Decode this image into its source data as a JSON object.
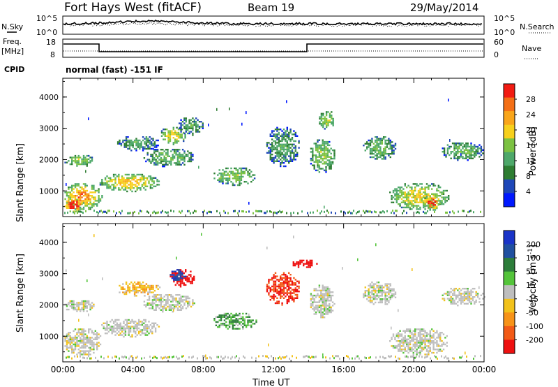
{
  "header": {
    "station": "Fort Hays West (fitACF)",
    "beam": "Beam 19",
    "date": "29/May/2014"
  },
  "status_panels": {
    "nsky_label": "N.Sky",
    "nsearch_label": "N.Search",
    "freq_label_1": "Freq.",
    "freq_label_2": "[MHz]",
    "nave_label": "Nave",
    "cpid_label": "CPID",
    "cpid_text": "normal (fast) -151 IF",
    "noise_left_ticks": [
      "10^5",
      "10^0"
    ],
    "noise_right_ticks": [
      "10^5",
      "10^0"
    ],
    "freq_left_ticks": [
      "18",
      "8"
    ],
    "freq_right_ticks": [
      "60",
      "0"
    ]
  },
  "colors": {
    "power": [
      "#0018ff",
      "#1e47b8",
      "#2e7d32",
      "#4ea86a",
      "#7cc242",
      "#f7d01c",
      "#f9a51a",
      "#f46f16",
      "#f21b12"
    ],
    "velocity": [
      "#1a34c8",
      "#2050a0",
      "#2d7d3a",
      "#54c43a",
      "#bebebe",
      "#f2c21b",
      "#f79318",
      "#f25a16",
      "#ee1010"
    ]
  },
  "chart_data": [
    {
      "type": "heatmap",
      "title": "Power",
      "ylabel": "Slant Range [km]",
      "xlabel": "",
      "x_unit": "UT hours",
      "xlim": [
        0,
        24
      ],
      "ylim": [
        180,
        4600
      ],
      "y_ticks": [
        1000,
        2000,
        3000,
        4000
      ],
      "x_ticks": [
        0,
        4,
        8,
        12,
        16,
        20,
        24
      ],
      "colorbar_label": "Power [dB]",
      "colorbar_range": [
        0,
        30
      ],
      "colorbar_ticks": [
        "4",
        "8",
        "12",
        "16",
        "20",
        "24",
        "28"
      ],
      "echo_regions": [
        {
          "t0": 0.0,
          "t1": 2.2,
          "r0": 400,
          "r1": 1300,
          "level": 22
        },
        {
          "t0": 0.0,
          "t1": 1.2,
          "r0": 350,
          "r1": 800,
          "level": 28
        },
        {
          "t0": 0.0,
          "t1": 1.8,
          "r0": 1800,
          "r1": 2200,
          "level": 14
        },
        {
          "t0": 2.0,
          "t1": 5.5,
          "r0": 1000,
          "r1": 1600,
          "level": 20
        },
        {
          "t0": 3.0,
          "t1": 5.5,
          "r0": 2300,
          "r1": 2800,
          "level": 10
        },
        {
          "t0": 4.5,
          "t1": 7.5,
          "r0": 1800,
          "r1": 2400,
          "level": 12
        },
        {
          "t0": 5.5,
          "t1": 7.0,
          "r0": 2500,
          "r1": 3100,
          "level": 18
        },
        {
          "t0": 6.5,
          "t1": 8.0,
          "r0": 2800,
          "r1": 3400,
          "level": 10
        },
        {
          "t0": 8.5,
          "t1": 11.0,
          "r0": 1200,
          "r1": 1800,
          "level": 14
        },
        {
          "t0": 11.5,
          "t1": 13.5,
          "r0": 1800,
          "r1": 3100,
          "level": 10
        },
        {
          "t0": 14.0,
          "t1": 15.5,
          "r0": 1600,
          "r1": 2700,
          "level": 14
        },
        {
          "t0": 14.5,
          "t1": 15.5,
          "r0": 3000,
          "r1": 3600,
          "level": 16
        },
        {
          "t0": 17.0,
          "t1": 19.0,
          "r0": 2000,
          "r1": 2800,
          "level": 12
        },
        {
          "t0": 18.5,
          "t1": 22.0,
          "r0": 400,
          "r1": 1300,
          "level": 18
        },
        {
          "t0": 20.5,
          "t1": 21.5,
          "r0": 400,
          "r1": 900,
          "level": 26
        },
        {
          "t0": 21.5,
          "t1": 24.0,
          "r0": 2000,
          "r1": 2600,
          "level": 12
        }
      ]
    },
    {
      "type": "heatmap",
      "title": "Velocity",
      "ylabel": "Slant Range [km]",
      "xlabel": "Time UT",
      "x_unit": "UT hours",
      "xlim": [
        0,
        24
      ],
      "ylim": [
        180,
        4600
      ],
      "y_ticks": [
        1000,
        2000,
        3000,
        4000
      ],
      "x_tick_labels": [
        "00:00",
        "04:00",
        "08:00",
        "12:00",
        "16:00",
        "20:00",
        "00:00"
      ],
      "colorbar_label": "Velocity [m s^-1]",
      "colorbar_ticks": [
        "200",
        "100",
        "50",
        "15",
        "-15",
        "-50",
        "-100",
        "-200"
      ],
      "echo_regions": [
        {
          "t0": 0.0,
          "t1": 2.2,
          "r0": 400,
          "r1": 1300,
          "level": 0
        },
        {
          "t0": 0.0,
          "t1": 1.8,
          "r0": 1800,
          "r1": 2200,
          "level": 0
        },
        {
          "t0": 2.0,
          "t1": 5.5,
          "r0": 1000,
          "r1": 1600,
          "level": 0
        },
        {
          "t0": 3.0,
          "t1": 5.5,
          "r0": 2300,
          "r1": 2800,
          "level": -30
        },
        {
          "t0": 4.5,
          "t1": 7.5,
          "r0": 1800,
          "r1": 2400,
          "level": 0
        },
        {
          "t0": 6.0,
          "t1": 7.5,
          "r0": 2600,
          "r1": 3200,
          "level": -200
        },
        {
          "t0": 6.0,
          "t1": 7.0,
          "r0": 2800,
          "r1": 3200,
          "level": 150
        },
        {
          "t0": 8.5,
          "t1": 11.0,
          "r0": 1200,
          "r1": 1800,
          "level": 30
        },
        {
          "t0": 11.5,
          "t1": 13.5,
          "r0": 2000,
          "r1": 3100,
          "level": -150
        },
        {
          "t0": 13.0,
          "t1": 14.5,
          "r0": 3200,
          "r1": 3500,
          "level": -220
        },
        {
          "t0": 14.0,
          "t1": 15.5,
          "r0": 1600,
          "r1": 2700,
          "level": 0
        },
        {
          "t0": 17.0,
          "t1": 19.0,
          "r0": 2000,
          "r1": 2800,
          "level": 0
        },
        {
          "t0": 18.5,
          "t1": 22.0,
          "r0": 400,
          "r1": 1300,
          "level": 0
        },
        {
          "t0": 21.5,
          "t1": 24.0,
          "r0": 2000,
          "r1": 2600,
          "level": 0
        }
      ]
    }
  ]
}
